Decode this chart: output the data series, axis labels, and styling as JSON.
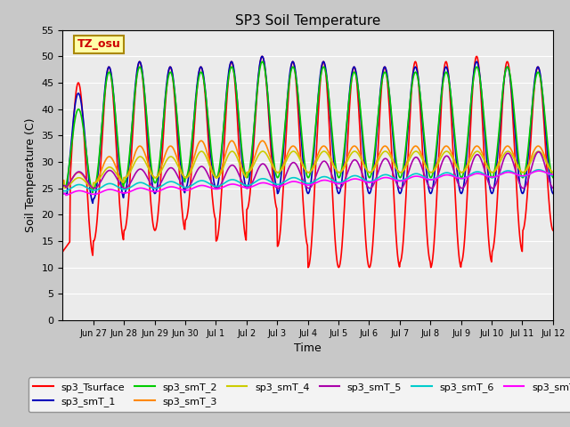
{
  "title": "SP3 Soil Temperature",
  "ylabel": "Soil Temperature (C)",
  "xlabel": "Time",
  "ylim": [
    0,
    55
  ],
  "yticks": [
    0,
    5,
    10,
    15,
    20,
    25,
    30,
    35,
    40,
    45,
    50,
    55
  ],
  "xtick_labels": [
    "Jun 27",
    "Jun 28",
    "Jun 29",
    "Jun 30",
    "Jul 1",
    "Jul 2",
    "Jul 3",
    "Jul 4",
    "Jul 5",
    "Jul 6",
    "Jul 7",
    "Jul 8",
    "Jul 9",
    "Jul 10",
    "Jul 11",
    "Jul 12"
  ],
  "series_colors": {
    "sp3_Tsurface": "#FF0000",
    "sp3_smT_1": "#0000BB",
    "sp3_smT_2": "#00CC00",
    "sp3_smT_3": "#FF8800",
    "sp3_smT_4": "#CCCC00",
    "sp3_smT_5": "#AA00AA",
    "sp3_smT_6": "#00CCCC",
    "sp3_smT_7": "#FF00FF"
  },
  "annotation_text": "TZ_osu",
  "annotation_color": "#CC0000",
  "annotation_bg": "#FFFFAA",
  "annotation_border": "#AA8800",
  "background_plot": "#EBEBEB",
  "background_outer": "#C8C8C8",
  "title_fontsize": 11,
  "lw": 1.2
}
